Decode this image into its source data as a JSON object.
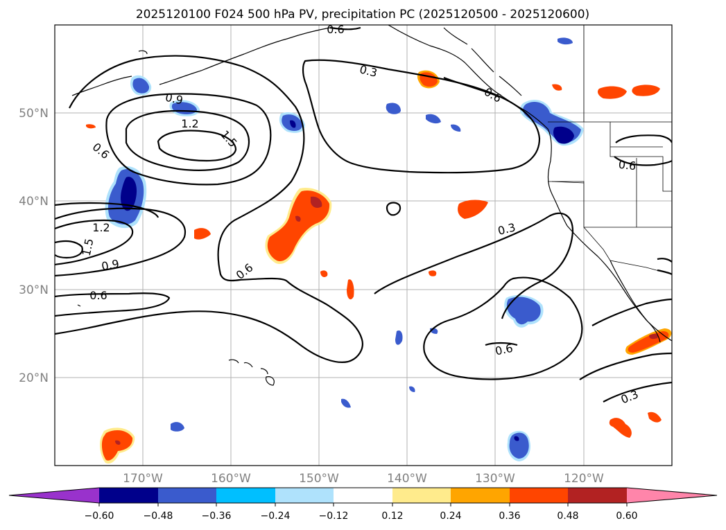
{
  "title": "2025120100 F024 500 hPa PV, precipitation PC (2025120500 - 2025120600)",
  "longitude_ticks": [
    "170°W",
    "160°W",
    "150°W",
    "140°W",
    "130°W",
    "120°W"
  ],
  "latitude_ticks": [
    "50°N",
    "40°N",
    "30°N",
    "20°N"
  ],
  "contour_labels": {
    "c03a": "0.3",
    "c03b": "0.3",
    "c03c": "0.3",
    "c06a": "0.6",
    "c06b": "0.6",
    "c06c": "0.6",
    "c06d": "0.6",
    "c06e": "0.6",
    "c06f": "0.6",
    "c06g": "0.6",
    "c09a": "0.9",
    "c09b": "0.9",
    "c12a": "1.2",
    "c12b": "1.2",
    "c15a": "1.5",
    "c15b": "1.5"
  },
  "colorbar": {
    "ticks": [
      "−0.60",
      "−0.48",
      "−0.36",
      "−0.24",
      "−0.12",
      "0.12",
      "0.24",
      "0.36",
      "0.48",
      "0.60"
    ],
    "colors": [
      "#9932cc",
      "#00008b",
      "#3a5bcd",
      "#00bfff",
      "#afe2fc",
      "#ffffff",
      "#ffeb8c",
      "#ffa500",
      "#ff4500",
      "#b22222",
      "#ff85aa"
    ]
  },
  "colors": {
    "dark_blue": "#00008b",
    "royal_blue": "#3a5bcd",
    "sky_blue": "#00bfff",
    "light_yellow": "#ffeb8c",
    "orange": "#ffa500",
    "red_orange": "#ff4500",
    "brick_red": "#b22222"
  }
}
